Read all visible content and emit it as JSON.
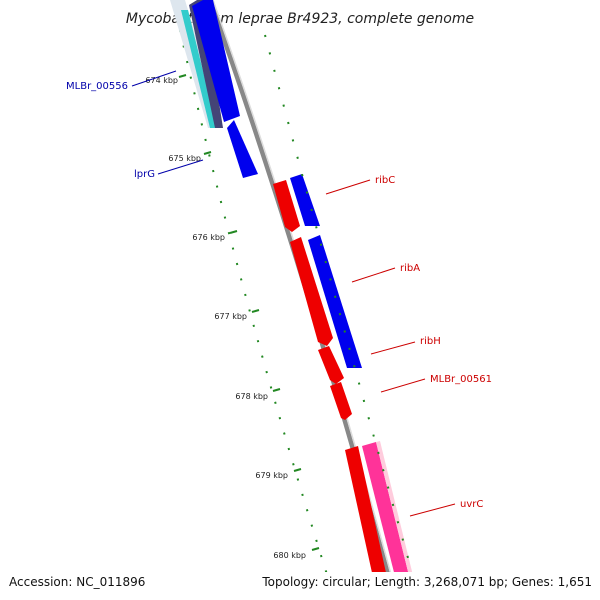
{
  "title": "Mycobacterium leprae Br4923, complete genome",
  "footer": {
    "accession": "Accession: NC_011896",
    "summary": "Topology: circular; Length: 3,268,071 bp; Genes: 1,651"
  },
  "ticks": [
    "674 kbp",
    "675 kbp",
    "676 kbp",
    "677 kbp",
    "678 kbp",
    "679 kbp",
    "680 kbp"
  ],
  "gene_labels": {
    "mlbr_00556": "MLBr_00556",
    "lprg": "lprG",
    "ribc": "ribC",
    "riba": "ribA",
    "ribh": "ribH",
    "mlbr_00561": "MLBr_00561",
    "uvrc": "uvrC"
  },
  "colors": {
    "backbone": "#888888",
    "forward_cds": "#0000ee",
    "reverse_cds": "#ee0000",
    "misc_feature_cyan": "#33cccc",
    "misc_feature_pink": "#ff3399",
    "ruler": "#228822",
    "label_blue": "#0000aa",
    "label_red": "#cc0000"
  }
}
